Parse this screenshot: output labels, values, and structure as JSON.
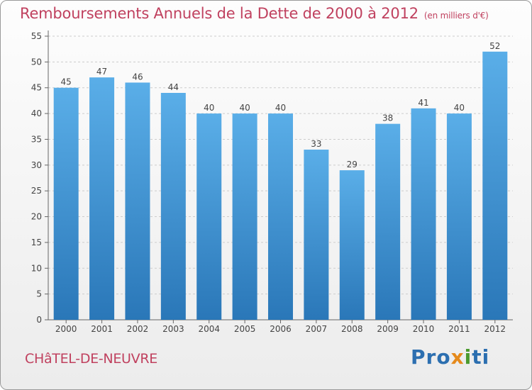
{
  "header": {
    "title": "Remboursements Annuels de la Dette de 2000 à 2012",
    "unit": "(en milliers d'€)"
  },
  "footer": {
    "commune": "CHâTEL-DE-NEUVRE",
    "brand_parts": [
      "Pro",
      "x",
      "i",
      "ti"
    ]
  },
  "colors": {
    "title": "#c0415f",
    "bar_top": "#5aaee8",
    "bar_bottom": "#2a77b8",
    "grid": "#cccccc"
  },
  "chart_data": {
    "type": "bar",
    "title": "Remboursements Annuels de la Dette de 2000 à 2012",
    "xlabel": "",
    "ylabel": "en milliers d'€",
    "categories": [
      "2000",
      "2001",
      "2002",
      "2003",
      "2004",
      "2005",
      "2006",
      "2007",
      "2008",
      "2009",
      "2010",
      "2011",
      "2012"
    ],
    "values": [
      45,
      47,
      46,
      44,
      40,
      40,
      40,
      33,
      29,
      38,
      41,
      40,
      52
    ],
    "ylim": [
      0,
      55
    ],
    "yticks": [
      0,
      5,
      10,
      15,
      20,
      25,
      30,
      35,
      40,
      45,
      50,
      55
    ],
    "grid": true
  }
}
